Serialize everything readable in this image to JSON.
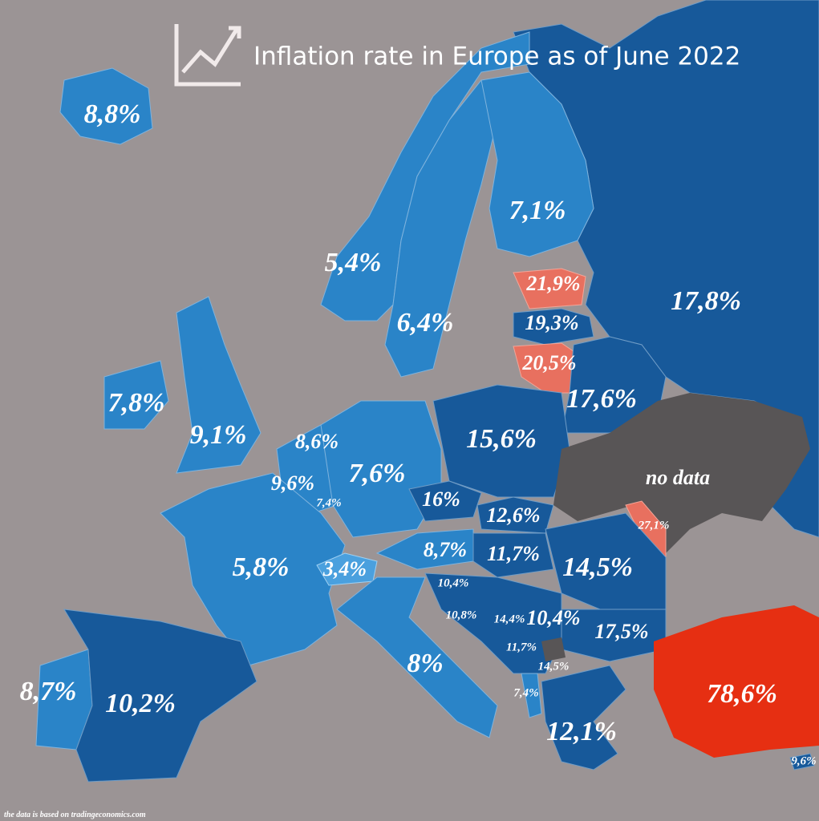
{
  "title": "Inflation rate in Europe as of June 2022",
  "labels": [
    "8,8%",
    "5,4%",
    "6,4%",
    "7,1%",
    "21,9%",
    "19,3%",
    "20,5%",
    "17,8%",
    "7,8%",
    "9,1%",
    "8,6%",
    "9,6%",
    "7,4%",
    "7,6%",
    "17,6%",
    "15,6%",
    "16%",
    "12,6%",
    "27,1%",
    "5,8%",
    "3,4%",
    "8,7%",
    "11,7%",
    "14,5%",
    "10,4%",
    "10,8%",
    "14,4%",
    "10,4%",
    "17,5%",
    "11,7%",
    "14,5%",
    "8%",
    "7,4%",
    "12,1%",
    "78,6%",
    "8,7%",
    "10,2%",
    "9,6%"
  ],
  "no_data": "no data",
  "source": "the data is based on tradingeconomics.com"
}
